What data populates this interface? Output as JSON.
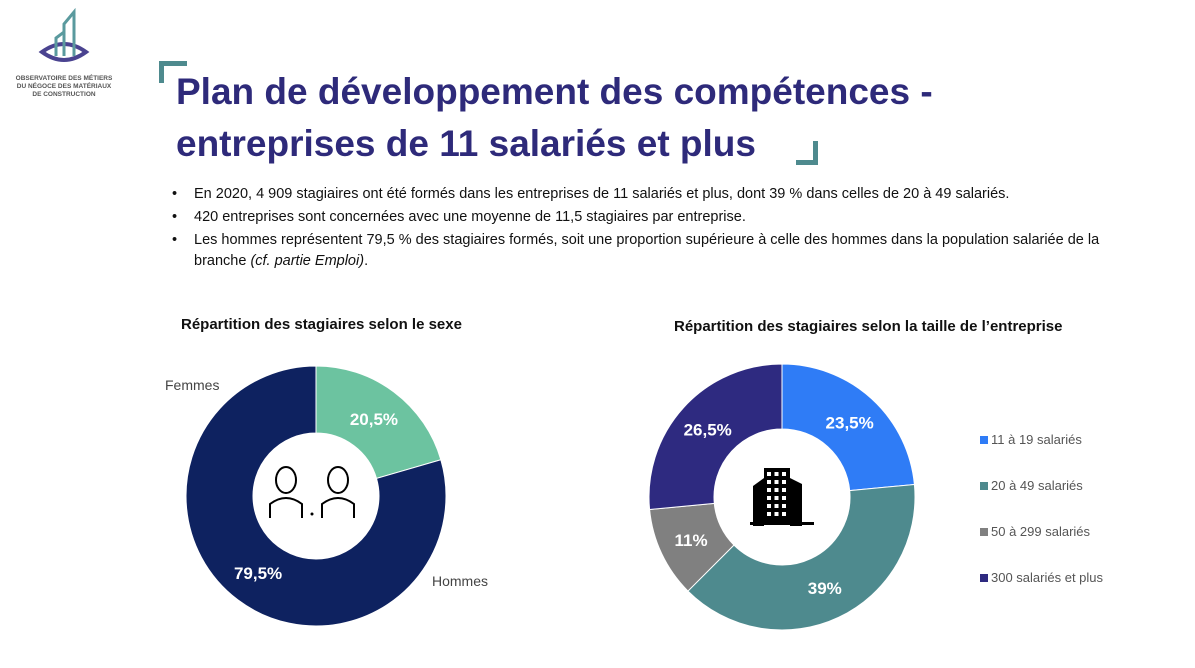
{
  "logo": {
    "text": "OBSERVATOIRE DES MÉTIERS DU NÉGOCE DES MATÉRIAUX DE CONSTRUCTION"
  },
  "title": {
    "line1": "Plan de développement des compétences -",
    "line2": "entreprises de 11 salariés et plus"
  },
  "bullets": [
    "En 2020, 4 909 stagiaires ont été formés dans les entreprises de 11 salariés et plus, dont 39 % dans celles de 20 à 49 salariés.",
    "420 entreprises sont concernées avec une moyenne de 11,5 stagiaires par entreprise."
  ],
  "bullet3": {
    "text": "Les hommes représentent 79,5 % des stagiaires formés, soit une proportion supérieure à celle des hommes dans la population salariée de la branche ",
    "italic": "(cf. partie Emploi)",
    "end": "."
  },
  "chart_data": [
    {
      "type": "pie",
      "donut": true,
      "title": "Répartition des stagiaires selon le sexe",
      "categories": [
        "Femmes",
        "Hommes"
      ],
      "values": [
        20.5,
        79.5
      ],
      "labels": [
        "20,5%",
        "79,5%"
      ],
      "colors": [
        "#6cc3a0",
        "#0e2260"
      ],
      "center_icon": "woman-man-icon",
      "legend": "outside-labels"
    },
    {
      "type": "pie",
      "donut": true,
      "title": "Répartition des stagiaires selon la taille de l’entreprise",
      "categories": [
        "11 à 19 salariés",
        "20 à 49 salariés",
        "50 à 299 salariés",
        "300 salariés et plus"
      ],
      "values": [
        23.5,
        39,
        11,
        26.5
      ],
      "labels": [
        "23,5%",
        "39%",
        "11%",
        "26,5%"
      ],
      "colors": [
        "#2f7cf6",
        "#4e8a8e",
        "#808080",
        "#2e2a80"
      ],
      "center_icon": "building-icon",
      "legend": "right"
    }
  ]
}
